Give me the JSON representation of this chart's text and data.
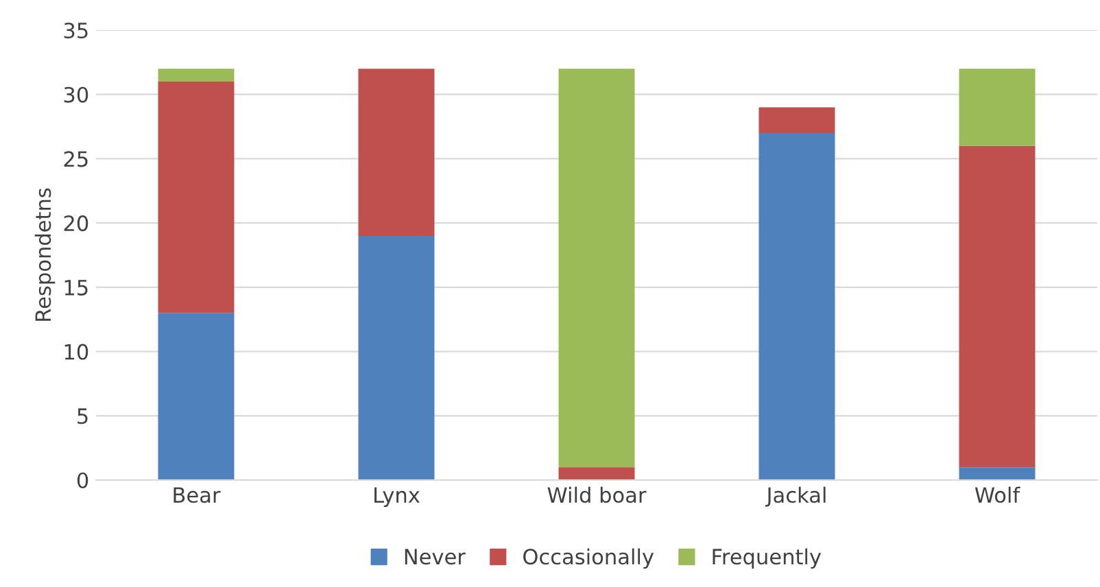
{
  "chart_data": {
    "type": "bar",
    "stacked": true,
    "ylabel": "Respondetns",
    "categories": [
      "Bear",
      "Lynx",
      "Wild boar",
      "Jackal",
      "Wolf"
    ],
    "series": [
      {
        "name": "Never",
        "color": "#4f81bd",
        "values": [
          13,
          19,
          0,
          27,
          1
        ]
      },
      {
        "name": "Occasionally",
        "color": "#c0504d",
        "values": [
          18,
          13,
          1,
          2,
          25
        ]
      },
      {
        "name": "Frequently",
        "color": "#9bbb59",
        "values": [
          1,
          0,
          31,
          0,
          6
        ]
      }
    ],
    "ylim": [
      0,
      35
    ],
    "yticks": [
      0,
      5,
      10,
      15,
      20,
      25,
      30,
      35
    ],
    "grid": "y",
    "legend": "bottom"
  }
}
